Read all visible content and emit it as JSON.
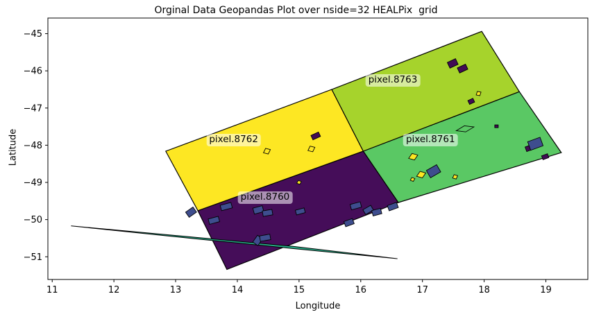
{
  "chart_data": {
    "type": "map",
    "title": "Orginal Data Geopandas Plot over nside=32 HEALPix  grid",
    "xlabel": "Longitude",
    "ylabel": "Latitude",
    "xlim": [
      10.93,
      19.68
    ],
    "ylim": [
      -51.61,
      -44.58
    ],
    "xticks": [
      11,
      12,
      13,
      14,
      15,
      16,
      17,
      18,
      19
    ],
    "yticks": [
      -45,
      -46,
      -47,
      -48,
      -49,
      -50,
      -51
    ],
    "grid": false,
    "legend": "none",
    "colors": {
      "blue": "#3e4d8e",
      "yellow": "#fde723",
      "darkpurple": "#420c55",
      "green": "#5ac864",
      "sliver": "#27a884",
      "edge": "#000000"
    },
    "healpix_pixels": [
      {
        "id": "pixel.8760",
        "color": "#450d59",
        "label_lon": 14.45,
        "label_lat": -49.41,
        "corners": [
          [
            13.36,
            -49.76
          ],
          [
            16.04,
            -48.16
          ],
          [
            16.61,
            -49.54
          ],
          [
            13.83,
            -51.34
          ]
        ]
      },
      {
        "id": "pixel.8761",
        "color": "#5ac864",
        "label_lon": 17.13,
        "label_lat": -47.86,
        "corners": [
          [
            16.04,
            -48.16
          ],
          [
            18.57,
            -46.56
          ],
          [
            19.25,
            -48.2
          ],
          [
            16.61,
            -49.54
          ]
        ]
      },
      {
        "id": "pixel.8762",
        "color": "#fde723",
        "label_lon": 13.94,
        "label_lat": -47.86,
        "corners": [
          [
            12.84,
            -48.16
          ],
          [
            15.53,
            -46.5
          ],
          [
            16.04,
            -48.16
          ],
          [
            13.36,
            -49.76
          ]
        ]
      },
      {
        "id": "pixel.8763",
        "color": "#a6d32c",
        "label_lon": 16.52,
        "label_lat": -46.26,
        "corners": [
          [
            15.53,
            -46.5
          ],
          [
            17.96,
            -44.94
          ],
          [
            18.57,
            -46.56
          ],
          [
            16.04,
            -48.16
          ]
        ]
      }
    ],
    "sliver": {
      "color": "#27a884",
      "points": [
        [
          11.31,
          -50.17
        ],
        [
          13.31,
          -50.475
        ],
        [
          14.88,
          -50.715
        ],
        [
          16.59,
          -51.05
        ],
        [
          14.88,
          -50.775
        ],
        [
          13.31,
          -50.515
        ]
      ]
    },
    "markers": [
      {
        "lon": 13.25,
        "lat": -49.8,
        "w": 13,
        "h": 9,
        "rot": -35,
        "c": "blue",
        "shape": "r"
      },
      {
        "lon": 13.82,
        "lat": -49.65,
        "w": 16,
        "h": 8,
        "rot": -15,
        "c": "blue",
        "shape": "r"
      },
      {
        "lon": 13.62,
        "lat": -50.02,
        "w": 15,
        "h": 8,
        "rot": -15,
        "c": "blue",
        "shape": "r"
      },
      {
        "lon": 14.34,
        "lat": -49.74,
        "w": 14,
        "h": 9,
        "rot": -15,
        "c": "blue",
        "shape": "r"
      },
      {
        "lon": 14.49,
        "lat": -49.82,
        "w": 14,
        "h": 8,
        "rot": -10,
        "c": "blue",
        "shape": "r"
      },
      {
        "lon": 15.02,
        "lat": -49.78,
        "w": 13,
        "h": 7,
        "rot": -15,
        "c": "blue",
        "shape": "r"
      },
      {
        "lon": 14.33,
        "lat": -50.56,
        "w": 12,
        "h": 9,
        "rot": -55,
        "c": "blue",
        "shape": "r"
      },
      {
        "lon": 14.45,
        "lat": -50.49,
        "w": 15,
        "h": 8,
        "rot": -10,
        "c": "blue",
        "shape": "r"
      },
      {
        "lon": 15.92,
        "lat": -49.63,
        "w": 15,
        "h": 8,
        "rot": -15,
        "c": "blue",
        "shape": "r"
      },
      {
        "lon": 16.12,
        "lat": -49.74,
        "w": 13,
        "h": 8,
        "rot": -30,
        "c": "blue",
        "shape": "r"
      },
      {
        "lon": 16.26,
        "lat": -49.8,
        "w": 13,
        "h": 8,
        "rot": -15,
        "c": "blue",
        "shape": "r"
      },
      {
        "lon": 16.52,
        "lat": -49.65,
        "w": 14,
        "h": 8,
        "rot": -20,
        "c": "blue",
        "shape": "r"
      },
      {
        "lon": 15.81,
        "lat": -50.08,
        "w": 13,
        "h": 8,
        "rot": -20,
        "c": "blue",
        "shape": "r"
      },
      {
        "lon": 15.0,
        "lat": -49.0,
        "w": 7,
        "h": 6,
        "rot": -20,
        "c": "yellow",
        "shape": "d"
      },
      {
        "lon": 15.27,
        "lat": -47.75,
        "w": 12,
        "h": 7,
        "rot": -25,
        "c": "darkpurple",
        "shape": "r"
      },
      {
        "lon": 14.48,
        "lat": -48.16,
        "w": 11,
        "h": 9,
        "rot": -25,
        "c": "yellow",
        "shape": "d"
      },
      {
        "lon": 15.2,
        "lat": -48.1,
        "w": 11,
        "h": 9,
        "rot": -25,
        "c": "yellow",
        "shape": "d"
      },
      {
        "lon": 17.49,
        "lat": -45.8,
        "w": 13,
        "h": 9,
        "rot": -25,
        "c": "darkpurple",
        "shape": "r"
      },
      {
        "lon": 17.65,
        "lat": -45.94,
        "w": 13,
        "h": 8,
        "rot": -25,
        "c": "darkpurple",
        "shape": "r"
      },
      {
        "lon": 17.91,
        "lat": -46.61,
        "w": 8,
        "h": 7,
        "rot": -30,
        "c": "yellow",
        "shape": "d"
      },
      {
        "lon": 17.79,
        "lat": -46.82,
        "w": 8,
        "h": 6,
        "rot": -25,
        "c": "darkpurple",
        "shape": "r"
      },
      {
        "lon": 17.69,
        "lat": -47.56,
        "w": 26,
        "h": 9,
        "rot": -12,
        "c": "green",
        "shape": "d"
      },
      {
        "lon": 18.2,
        "lat": -47.49,
        "w": 5,
        "h": 4,
        "rot": 0,
        "c": "darkpurple",
        "shape": "r"
      },
      {
        "lon": 18.74,
        "lat": -48.07,
        "w": 12,
        "h": 7,
        "rot": -20,
        "c": "darkpurple",
        "shape": "r"
      },
      {
        "lon": 18.83,
        "lat": -47.96,
        "w": 19,
        "h": 13,
        "rot": -20,
        "c": "blue",
        "shape": "r"
      },
      {
        "lon": 18.99,
        "lat": -48.31,
        "w": 9,
        "h": 6,
        "rot": -20,
        "c": "darkpurple",
        "shape": "r"
      },
      {
        "lon": 16.85,
        "lat": -48.31,
        "w": 14,
        "h": 10,
        "rot": -20,
        "c": "yellow",
        "shape": "d"
      },
      {
        "lon": 17.18,
        "lat": -48.7,
        "w": 17,
        "h": 12,
        "rot": -30,
        "c": "blue",
        "shape": "r"
      },
      {
        "lon": 16.98,
        "lat": -48.79,
        "w": 14,
        "h": 10,
        "rot": -20,
        "c": "yellow",
        "shape": "d"
      },
      {
        "lon": 16.84,
        "lat": -48.92,
        "w": 7,
        "h": 6,
        "rot": -20,
        "c": "yellow",
        "shape": "d"
      },
      {
        "lon": 17.53,
        "lat": -48.85,
        "w": 8,
        "h": 7,
        "rot": -25,
        "c": "yellow",
        "shape": "d"
      }
    ]
  }
}
